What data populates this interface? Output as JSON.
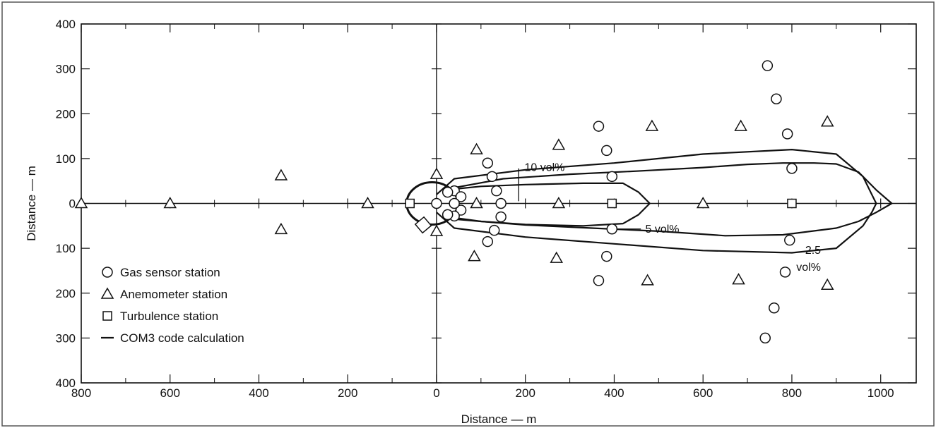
{
  "chart_data": {
    "type": "scatter",
    "xlabel": "Distance — m",
    "ylabel": "Distance — m",
    "xlim": [
      -800,
      1080
    ],
    "ylim": [
      -400,
      400
    ],
    "x_ticks": [
      -800,
      -600,
      -400,
      -200,
      0,
      200,
      400,
      600,
      800,
      1000
    ],
    "x_tick_labels": [
      "800",
      "600",
      "400",
      "200",
      "0",
      "200",
      "400",
      "600",
      "800",
      "1000"
    ],
    "y_ticks": [
      400,
      300,
      200,
      100,
      0,
      -100,
      -200,
      -300,
      -400
    ],
    "y_tick_labels": [
      "400",
      "300",
      "200",
      "100",
      "0",
      "100",
      "200",
      "300",
      "400"
    ],
    "grid": false,
    "legend_position": "bottom-left",
    "legend": [
      {
        "symbol": "circle",
        "label": "Gas sensor station"
      },
      {
        "symbol": "triangle",
        "label": "Anemometer station"
      },
      {
        "symbol": "square",
        "label": "Turbulence station"
      },
      {
        "symbol": "line",
        "label": "COM3 code calculation"
      }
    ],
    "series": [
      {
        "name": "Gas sensor station",
        "marker": "circle",
        "points": [
          [
            0,
            0
          ],
          [
            40,
            28
          ],
          [
            55,
            15
          ],
          [
            55,
            -15
          ],
          [
            40,
            -28
          ],
          [
            40,
            0
          ],
          [
            25,
            25
          ],
          [
            25,
            -25
          ],
          [
            115,
            90
          ],
          [
            125,
            60
          ],
          [
            135,
            28
          ],
          [
            145,
            0
          ],
          [
            145,
            -30
          ],
          [
            130,
            -60
          ],
          [
            115,
            -85
          ],
          [
            365,
            172
          ],
          [
            383,
            118
          ],
          [
            395,
            60
          ],
          [
            395,
            -57
          ],
          [
            383,
            -118
          ],
          [
            365,
            -172
          ],
          [
            745,
            307
          ],
          [
            765,
            233
          ],
          [
            790,
            155
          ],
          [
            800,
            78
          ],
          [
            795,
            -82
          ],
          [
            785,
            -153
          ],
          [
            760,
            -233
          ],
          [
            740,
            -300
          ]
        ]
      },
      {
        "name": "Anemometer station",
        "marker": "triangle",
        "points": [
          [
            -800,
            0
          ],
          [
            -600,
            0
          ],
          [
            -350,
            62
          ],
          [
            -350,
            -58
          ],
          [
            -155,
            0
          ],
          [
            0,
            65
          ],
          [
            0,
            -62
          ],
          [
            90,
            120
          ],
          [
            90,
            0
          ],
          [
            85,
            -118
          ],
          [
            275,
            130
          ],
          [
            275,
            0
          ],
          [
            270,
            -122
          ],
          [
            485,
            172
          ],
          [
            475,
            -172
          ],
          [
            600,
            0
          ],
          [
            685,
            172
          ],
          [
            680,
            -170
          ],
          [
            880,
            182
          ],
          [
            880,
            -182
          ]
        ]
      },
      {
        "name": "Turbulence station",
        "marker": "square",
        "points": [
          [
            -60,
            0
          ],
          [
            395,
            0
          ],
          [
            800,
            0
          ]
        ]
      }
    ],
    "contours": [
      {
        "label": "10 vol%",
        "points": [
          [
            40,
            32
          ],
          [
            100,
            38
          ],
          [
            200,
            42
          ],
          [
            330,
            45
          ],
          [
            420,
            45
          ],
          [
            455,
            25
          ],
          [
            480,
            0
          ],
          [
            455,
            -25
          ],
          [
            420,
            -45
          ],
          [
            330,
            -50
          ],
          [
            200,
            -47
          ],
          [
            100,
            -40
          ],
          [
            40,
            -32
          ]
        ]
      },
      {
        "label": "5 vol%",
        "points": [
          [
            40,
            35
          ],
          [
            150,
            55
          ],
          [
            300,
            65
          ],
          [
            450,
            72
          ],
          [
            600,
            80
          ],
          [
            700,
            87
          ],
          [
            780,
            90
          ],
          [
            850,
            90
          ],
          [
            900,
            88
          ],
          [
            950,
            70
          ],
          [
            990,
            30
          ],
          [
            1025,
            0
          ],
          [
            990,
            -20
          ],
          [
            950,
            -40
          ],
          [
            900,
            -55
          ],
          [
            780,
            -70
          ],
          [
            650,
            -72
          ],
          [
            500,
            -62
          ],
          [
            350,
            -55
          ],
          [
            200,
            -48
          ],
          [
            100,
            -40
          ],
          [
            40,
            -35
          ]
        ]
      },
      {
        "label": "2.5 vol%",
        "points": [
          [
            0,
            20
          ],
          [
            40,
            55
          ],
          [
            200,
            75
          ],
          [
            400,
            90
          ],
          [
            600,
            110
          ],
          [
            800,
            120
          ],
          [
            900,
            110
          ],
          [
            960,
            60
          ],
          [
            980,
            20
          ],
          [
            990,
            0
          ],
          [
            980,
            -20
          ],
          [
            960,
            -50
          ],
          [
            900,
            -100
          ],
          [
            800,
            -110
          ],
          [
            600,
            -105
          ],
          [
            400,
            -90
          ],
          [
            200,
            -75
          ],
          [
            40,
            -55
          ],
          [
            0,
            -20
          ]
        ]
      }
    ],
    "annotations": [
      "10 vol%",
      "5 vol%",
      "2.5",
      "vol%"
    ]
  }
}
